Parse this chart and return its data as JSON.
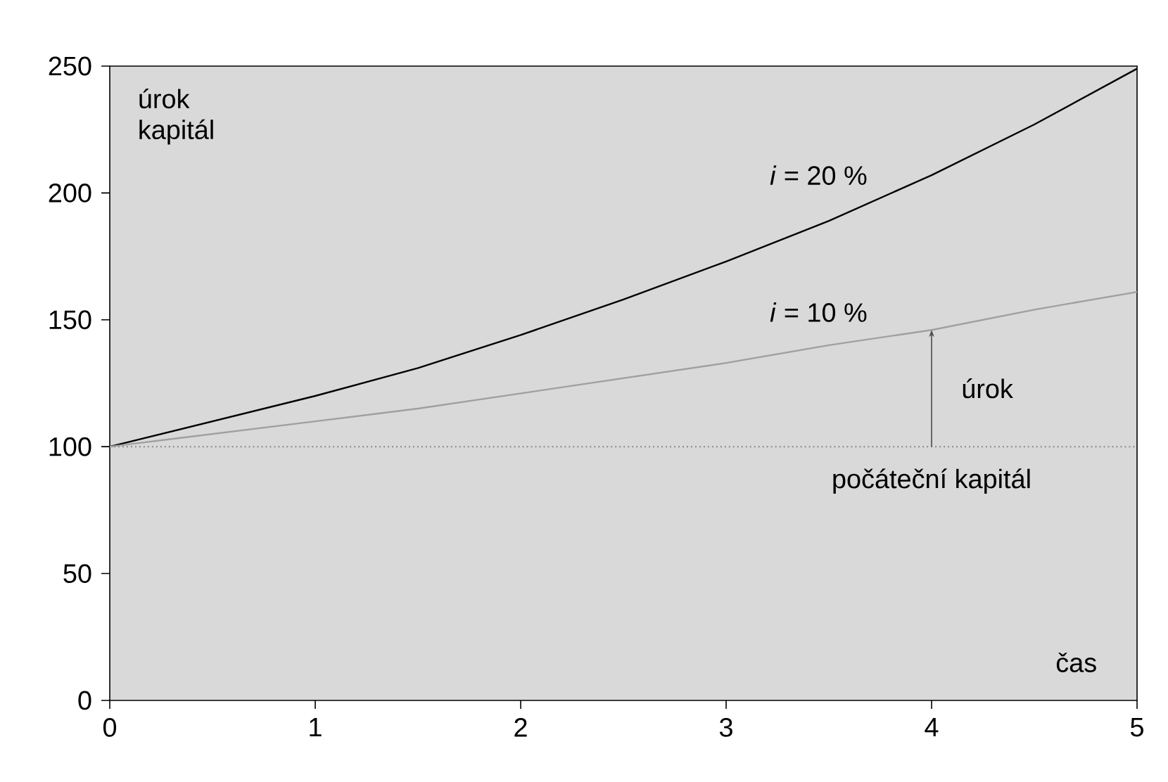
{
  "chart_data": {
    "type": "line",
    "xlabel": "čas",
    "ylabel": "úrok kapitál",
    "x": [
      0,
      0.5,
      1,
      1.5,
      2,
      2.5,
      3,
      3.5,
      4,
      4.5,
      5
    ],
    "series": [
      {
        "name": "*i* = 20 %",
        "color": "#000000",
        "values": [
          100,
          110,
          120,
          131,
          144,
          158,
          173,
          189,
          207,
          227,
          249
        ]
      },
      {
        "name": "*i* = 10 %",
        "color": "#a0a0a0",
        "values": [
          100,
          105,
          110,
          115,
          121,
          127,
          133,
          140,
          146,
          154,
          161
        ]
      }
    ],
    "xlim": [
      0,
      5
    ],
    "ylim": [
      0,
      250
    ],
    "xticks": [
      0,
      1,
      2,
      3,
      4,
      5
    ],
    "yticks": [
      0,
      50,
      100,
      150,
      200,
      250
    ],
    "ref_lines": [
      {
        "axis": "y",
        "value": 100,
        "label": "počáteční kapitál",
        "color": "#888888",
        "line_style": "dotted"
      }
    ],
    "annotations": [
      {
        "text": "úrok",
        "x": 4,
        "y": 146
      }
    ],
    "grid": false,
    "legend": false,
    "marker": "none",
    "line_style": "solid"
  }
}
